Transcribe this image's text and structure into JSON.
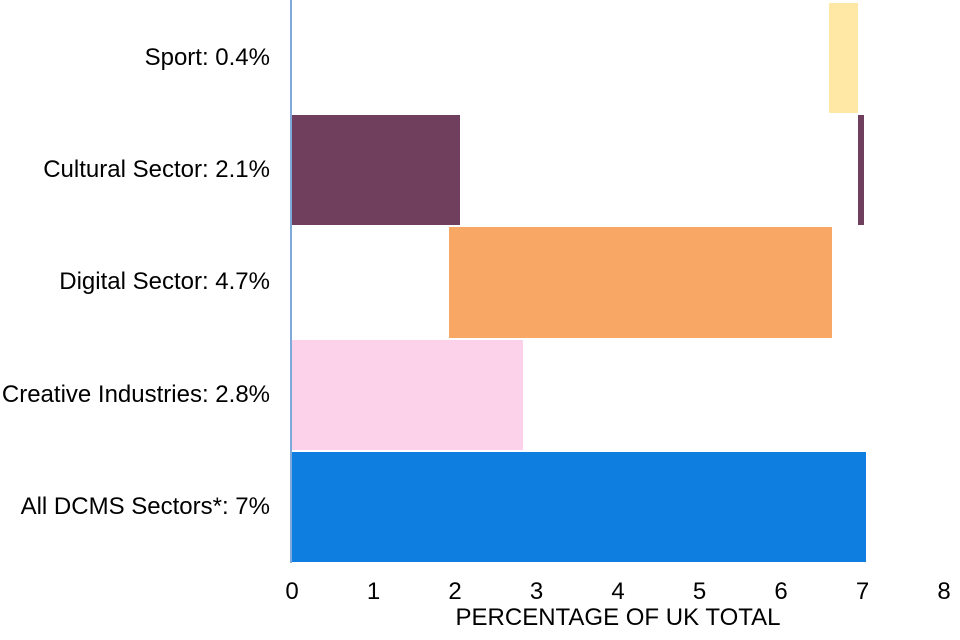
{
  "chart_data": {
    "type": "bar",
    "orientation": "horizontal",
    "title": "",
    "xlabel": "PERCENTAGE OF UK TOTAL",
    "ylabel": "",
    "xlim": [
      0,
      8
    ],
    "xticks": [
      "0",
      "1",
      "2",
      "3",
      "4",
      "5",
      "6",
      "7",
      "8"
    ],
    "grid": false,
    "legend": false,
    "rows": [
      {
        "category": "Sport",
        "label": "Sport: 0.4%",
        "value": 0.4,
        "color": "#FFE8A6",
        "segments": [
          [
            6.59,
            6.95
          ]
        ]
      },
      {
        "category": "Cultural Sector",
        "label": "Cultural Sector: 2.1%",
        "value": 2.1,
        "color": "#713F5E",
        "segments": [
          [
            0,
            2.06
          ],
          [
            6.95,
            7.02
          ]
        ]
      },
      {
        "category": "Digital Sector",
        "label": "Digital Sector: 4.7%",
        "value": 4.7,
        "color": "#F8A765",
        "segments": [
          [
            1.93,
            6.63
          ]
        ]
      },
      {
        "category": "Creative Industries",
        "label": "Creative Industries: 2.8%",
        "value": 2.8,
        "color": "#FCD2EB",
        "segments": [
          [
            0,
            2.83
          ]
        ]
      },
      {
        "category": "All DCMS Sectors*",
        "label": "All DCMS Sectors*: 7%",
        "value": 7,
        "color": "#0E7EE0",
        "segments": [
          [
            0,
            7.04
          ]
        ]
      }
    ],
    "colors": {
      "axis_line": "#7FA8DB",
      "text": "#000000",
      "background": "#FFFFFF"
    }
  }
}
